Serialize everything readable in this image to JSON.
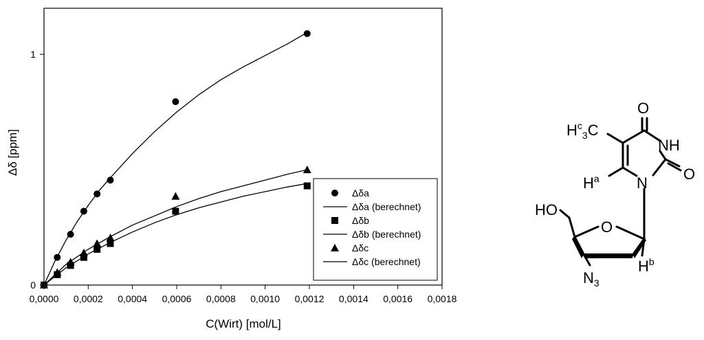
{
  "chart_data": {
    "type": "scatter",
    "xlabel": "C(Wirt) [mol/L]",
    "ylabel": "Δδ [ppm]",
    "xlim": [
      0,
      0.0018
    ],
    "ylim": [
      0,
      1.2
    ],
    "x_ticks": [
      "0,0000",
      "0,0002",
      "0,0004",
      "0,0006",
      "0,0008",
      "0,0010",
      "0,0012",
      "0,0014",
      "0,0016",
      "0,0018"
    ],
    "y_ticks": [
      "0",
      "1"
    ],
    "legend_position": "bottom-right",
    "series": [
      {
        "name": "Δδa",
        "marker": "circle",
        "x": [
          0,
          6e-05,
          0.00012,
          0.00018,
          0.00024,
          0.0003,
          0.000595,
          0.00119
        ],
        "y": [
          0,
          0.12,
          0.22,
          0.32,
          0.395,
          0.455,
          0.795,
          1.09
        ]
      },
      {
        "name": "Δδa (berechnet)",
        "marker": "line",
        "x": [
          0,
          5e-05,
          0.0001,
          0.00015,
          0.0002,
          0.00025,
          0.0003,
          0.0004,
          0.0005,
          0.0006,
          0.0007,
          0.0008,
          0.0009,
          0.001,
          0.0011,
          0.00119
        ],
        "y": [
          0,
          0.105,
          0.195,
          0.275,
          0.345,
          0.41,
          0.465,
          0.57,
          0.665,
          0.75,
          0.825,
          0.89,
          0.945,
          0.995,
          1.045,
          1.095
        ]
      },
      {
        "name": "Δδb",
        "marker": "square",
        "x": [
          0,
          6e-05,
          0.00012,
          0.00018,
          0.00024,
          0.0003,
          0.000595,
          0.00119
        ],
        "y": [
          0,
          0.045,
          0.085,
          0.12,
          0.155,
          0.18,
          0.32,
          0.43
        ]
      },
      {
        "name": "Δδb (berechnet)",
        "marker": "line",
        "x": [
          0,
          0.0001,
          0.0002,
          0.0003,
          0.0004,
          0.0005,
          0.0006,
          0.0007,
          0.0008,
          0.0009,
          0.001,
          0.0011,
          0.00119
        ],
        "y": [
          0,
          0.075,
          0.135,
          0.185,
          0.23,
          0.27,
          0.305,
          0.335,
          0.36,
          0.385,
          0.405,
          0.425,
          0.44
        ]
      },
      {
        "name": "Δδc",
        "marker": "triangle",
        "x": [
          0,
          6e-05,
          0.00012,
          0.00018,
          0.00024,
          0.0003,
          0.000595,
          0.00119
        ],
        "y": [
          0,
          0.055,
          0.1,
          0.14,
          0.18,
          0.205,
          0.385,
          0.5
        ]
      },
      {
        "name": "Δδc (berechnet)",
        "marker": "line",
        "x": [
          0,
          0.0001,
          0.0002,
          0.0003,
          0.0004,
          0.0005,
          0.0006,
          0.0007,
          0.0008,
          0.0009,
          0.001,
          0.0011,
          0.00119
        ],
        "y": [
          0,
          0.09,
          0.155,
          0.21,
          0.26,
          0.3,
          0.34,
          0.375,
          0.405,
          0.43,
          0.455,
          0.48,
          0.5
        ]
      }
    ]
  },
  "molecule": {
    "atoms": {
      "O_top": "O",
      "NH": "NH",
      "O_right": "O",
      "N": "N",
      "H_a": "H",
      "H_a_sup": "a",
      "methyl_H": "H",
      "methyl_sup": "c",
      "methyl_sub": "3",
      "methyl_C": "C",
      "HO": "HO",
      "O_ring": "O",
      "H_b": "H",
      "H_b_sup": "b",
      "N3_N": "N",
      "N3_sub": "3"
    }
  }
}
